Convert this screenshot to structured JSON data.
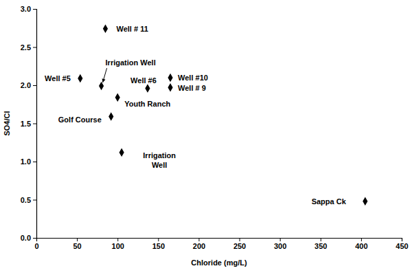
{
  "chart_data": {
    "type": "scatter",
    "x_label": "Chloride (mg/L)",
    "y_label": "SO4/Cl",
    "labels": [
      "Well #5",
      "Irrigation Well",
      "Well # 11",
      "Youth Ranch",
      "Golf Course",
      "Irrigation Well",
      "Well #6",
      "Well #10",
      "Well # 9",
      "Sappa Ck"
    ],
    "x": [
      54,
      80,
      85,
      100,
      92,
      105,
      137,
      165,
      165,
      405
    ],
    "values": [
      2.09,
      1.99,
      2.74,
      1.84,
      1.59,
      1.12,
      1.96,
      2.1,
      1.97,
      0.48
    ],
    "color": "#000000",
    "marker": "diamond",
    "xlim": [
      0,
      450
    ],
    "xticks": [
      0,
      50,
      100,
      150,
      200,
      250,
      300,
      350,
      400,
      450
    ],
    "ylim": [
      0,
      3
    ],
    "yticks": [
      {
        "value": 0,
        "label": "0.0"
      },
      0.5,
      {
        "value": 1,
        "label": "1.0"
      },
      1.5,
      {
        "value": 2,
        "label": "2.0"
      },
      2.5,
      {
        "value": 3,
        "label": "3.0"
      }
    ],
    "grid": false
  }
}
